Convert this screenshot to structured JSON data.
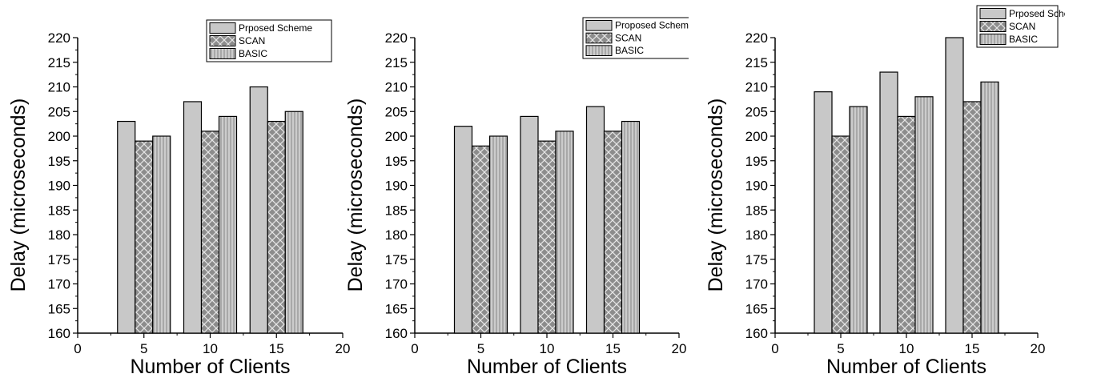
{
  "chart_data": [
    {
      "type": "bar",
      "xlabel": "Number of Clients",
      "ylabel": "Delay (microseconds)",
      "x": [
        5,
        10,
        15
      ],
      "xlim": [
        0,
        20
      ],
      "xticks": [
        0,
        5,
        10,
        15,
        20
      ],
      "ylim": [
        160,
        220
      ],
      "yticks": [
        160,
        165,
        170,
        175,
        180,
        185,
        190,
        195,
        200,
        205,
        210,
        215,
        220
      ],
      "grid": false,
      "legend_position": "top-right",
      "series": [
        {
          "name": "Prposed Scheme",
          "values": [
            203,
            207,
            210
          ],
          "color": "#c8c8c8",
          "pattern": "solid"
        },
        {
          "name": "SCAN",
          "values": [
            199,
            201,
            203
          ],
          "color": "#8c8c8c",
          "pattern": "crosshatch"
        },
        {
          "name": "BASIC",
          "values": [
            200,
            204,
            205
          ],
          "color": "#a8a8a8",
          "pattern": "vertical"
        }
      ]
    },
    {
      "type": "bar",
      "xlabel": "Number of Clients",
      "ylabel": "Delay (microseconds)",
      "x": [
        5,
        10,
        15
      ],
      "xlim": [
        0,
        20
      ],
      "xticks": [
        0,
        5,
        10,
        15,
        20
      ],
      "ylim": [
        160,
        220
      ],
      "yticks": [
        160,
        165,
        170,
        175,
        180,
        185,
        190,
        195,
        200,
        205,
        210,
        215,
        220
      ],
      "grid": false,
      "legend_position": "top-right",
      "series": [
        {
          "name": "Proposed Scheme",
          "values": [
            202,
            204,
            206
          ],
          "color": "#c8c8c8",
          "pattern": "solid"
        },
        {
          "name": "SCAN",
          "values": [
            198,
            199,
            201
          ],
          "color": "#8c8c8c",
          "pattern": "crosshatch"
        },
        {
          "name": "BASIC",
          "values": [
            200,
            201,
            203
          ],
          "color": "#a8a8a8",
          "pattern": "vertical"
        }
      ]
    },
    {
      "type": "bar",
      "xlabel": "Number of Clients",
      "ylabel": "Delay (microseconds)",
      "x": [
        5,
        10,
        15
      ],
      "xlim": [
        0,
        20
      ],
      "xticks": [
        0,
        5,
        10,
        15,
        20
      ],
      "ylim": [
        160,
        220
      ],
      "yticks": [
        160,
        165,
        170,
        175,
        180,
        185,
        190,
        195,
        200,
        205,
        210,
        215,
        220
      ],
      "grid": false,
      "legend_position": "top-right",
      "series": [
        {
          "name": "Prposed Scheme",
          "values": [
            209,
            213,
            220
          ],
          "color": "#c8c8c8",
          "pattern": "solid"
        },
        {
          "name": "SCAN",
          "values": [
            200,
            204,
            207
          ],
          "color": "#8c8c8c",
          "pattern": "crosshatch"
        },
        {
          "name": "BASIC",
          "values": [
            206,
            208,
            211
          ],
          "color": "#a8a8a8",
          "pattern": "vertical"
        }
      ]
    }
  ]
}
